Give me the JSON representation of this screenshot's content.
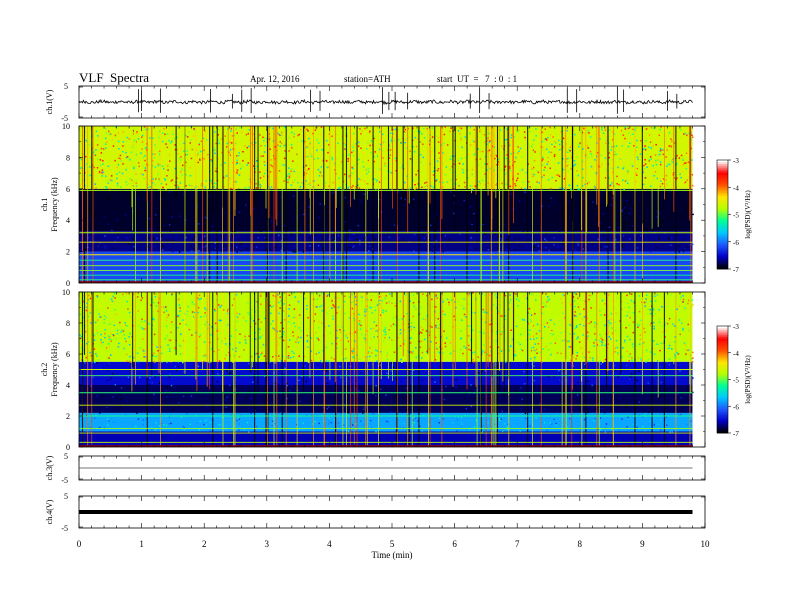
{
  "header": {
    "title": "VLF  Spectra",
    "date": "Apr. 12, 2016",
    "station": "station=ATH",
    "start": "start  UT  =   7  : 0  : 1"
  },
  "colors": {
    "trace": "#000000",
    "colormap": [
      "#000000",
      "#0000c8",
      "#1e5aff",
      "#00c8ff",
      "#00ff96",
      "#b4ff00",
      "#ffe600",
      "#ff5000",
      "#ff0000",
      "#ffffff"
    ]
  },
  "chart_data": [
    {
      "type": "line",
      "panel": "ch1-waveform",
      "ylabel": "ch.1(V)",
      "ylim": [
        -5,
        5
      ],
      "y_ticks": [
        "5",
        "-5"
      ],
      "x_range_min": [
        0,
        9.8
      ],
      "baseline": 0,
      "spike_times_min": [
        0.95,
        1.0,
        1.3,
        2.1,
        2.45,
        2.6,
        2.75,
        3.7,
        3.85,
        4.85,
        4.95,
        5.05,
        5.25,
        6.25,
        6.4,
        6.55,
        7.8,
        7.95,
        8.6,
        8.7,
        9.4,
        9.55
      ]
    },
    {
      "type": "heatmap",
      "panel": "ch1-spectrogram",
      "ylabel": "Frequency  (kHz)",
      "channel_label": "ch.1",
      "xlim": [
        0,
        10
      ],
      "ylim": [
        0,
        10
      ],
      "y_ticks": [
        "0",
        "2",
        "4",
        "6",
        "8",
        "10"
      ],
      "data_x_max": 9.8,
      "colorbar": {
        "label": "log(PSD)(V²/Hz)",
        "range": [
          -7,
          -3
        ],
        "ticks": [
          "-3",
          "-4",
          "-5",
          "-6",
          "-7"
        ]
      },
      "bands_kHz": [
        {
          "from": 0,
          "to": 2,
          "level": -6.2
        },
        {
          "from": 2,
          "to": 3.3,
          "level": -6.7
        },
        {
          "from": 3.3,
          "to": 6.0,
          "level": -6.9
        },
        {
          "from": 6.0,
          "to": 10,
          "level": -4.6
        }
      ],
      "lines_kHz": [
        0.2,
        0.5,
        0.8,
        1.1,
        1.45,
        1.8,
        2.6,
        3.2,
        5.9
      ]
    },
    {
      "type": "heatmap",
      "panel": "ch2-spectrogram",
      "ylabel": "Frequency  (kHz)",
      "channel_label": "ch.2",
      "xlim": [
        0,
        10
      ],
      "ylim": [
        0,
        10
      ],
      "y_ticks": [
        "0",
        "2",
        "4",
        "6",
        "8",
        "10"
      ],
      "data_x_max": 9.8,
      "colorbar": {
        "label": "log(PSD)(V²/Hz)",
        "range": [
          -7,
          -3
        ],
        "ticks": [
          "-3",
          "-4",
          "-5",
          "-6",
          "-7"
        ]
      },
      "bands_kHz": [
        {
          "from": 0,
          "to": 1.0,
          "level": -6.6
        },
        {
          "from": 1.0,
          "to": 2.2,
          "level": -5.8
        },
        {
          "from": 2.2,
          "to": 4.0,
          "level": -6.8
        },
        {
          "from": 4.0,
          "to": 5.5,
          "level": -6.5
        },
        {
          "from": 5.5,
          "to": 10,
          "level": -4.7
        }
      ],
      "lines_kHz": [
        0.3,
        0.9,
        1.2,
        2.0,
        2.7,
        3.5,
        4.6,
        5.0
      ]
    },
    {
      "type": "line",
      "panel": "ch3-waveform",
      "ylabel": "ch.3(V)",
      "ylim": [
        -5,
        5
      ],
      "y_ticks": [
        "5",
        "-5"
      ],
      "x_range_min": [
        0,
        9.8
      ],
      "baseline": 0
    },
    {
      "type": "line",
      "panel": "ch4-waveform",
      "ylabel": "ch.4(V)",
      "ylim": [
        -5,
        5
      ],
      "y_ticks": [
        "5",
        "-5"
      ],
      "x_range_min": [
        0,
        9.8
      ],
      "baseline": 0
    }
  ],
  "x_axis": {
    "label": "Time  (min)",
    "ticks": [
      "0",
      "1",
      "2",
      "3",
      "4",
      "5",
      "6",
      "7",
      "8",
      "9",
      "10"
    ]
  }
}
